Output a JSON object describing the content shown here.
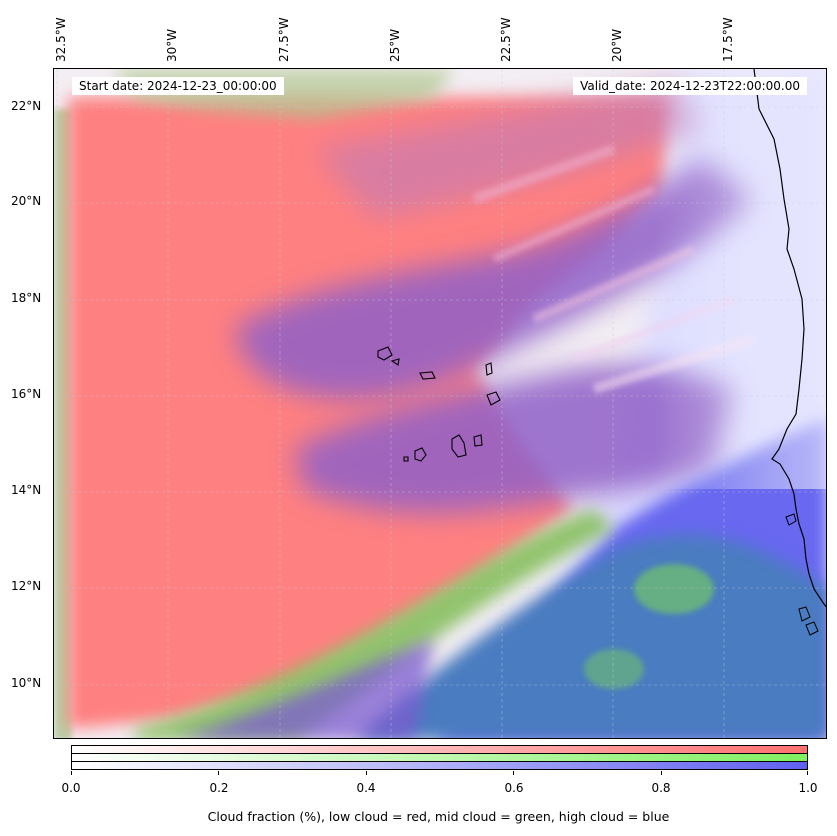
{
  "map": {
    "lon_labels": [
      "32.5°W",
      "30°W",
      "27.5°W",
      "25°W",
      "22.5°W",
      "20°W",
      "17.5°W"
    ],
    "lat_labels": [
      "22°N",
      "20°N",
      "18°N",
      "16°N",
      "14°N",
      "12°N",
      "10°N"
    ],
    "start_date": "Start date: 2024-12-23_00:00:00",
    "valid_date": "Valid_date: 2024-12-23T22:00:00.00",
    "colors": {
      "low_cloud": "#ff8080",
      "mid_cloud": "#80c860",
      "high_cloud": "#7070f0",
      "mixed_low_high": "#8e60c8",
      "mixed_mid_high": "#4a80c0",
      "background": "#f6f4f6"
    }
  },
  "colorbar": {
    "ticks": [
      "0.0",
      "0.2",
      "0.4",
      "0.6",
      "0.8",
      "1.0"
    ],
    "label": "Cloud fraction (%), low cloud = red, mid cloud = green, high cloud = blue",
    "bars": [
      {
        "name": "low",
        "from": "#ffffff",
        "to": "#ff7070"
      },
      {
        "name": "mid",
        "from": "#ffffff",
        "to": "#80f060"
      },
      {
        "name": "high",
        "from": "#ffffff",
        "to": "#6060f0"
      }
    ]
  }
}
